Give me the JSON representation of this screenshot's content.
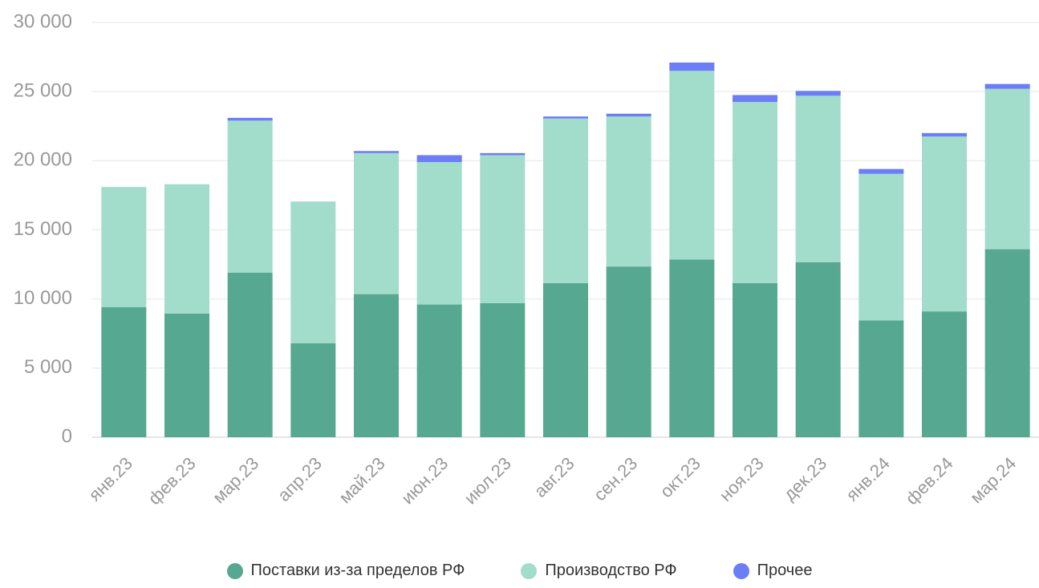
{
  "chart_data": {
    "type": "stacked-bar",
    "categories": [
      "янв.23",
      "фев.23",
      "мар.23",
      "апр.23",
      "май.23",
      "июн.23",
      "июл.23",
      "авг.23",
      "сен.23",
      "окт.23",
      "ноя.23",
      "дек.23",
      "янв.24",
      "фев.24",
      "мар.24"
    ],
    "series": [
      {
        "name": "Поставки из-за пределов РФ",
        "color": "#57a890",
        "values": [
          9400,
          8950,
          11900,
          6800,
          10350,
          9600,
          9700,
          11150,
          12350,
          12850,
          11150,
          12650,
          8450,
          9100,
          13600
        ]
      },
      {
        "name": "Производство РФ",
        "color": "#a2dccb",
        "values": [
          8700,
          9350,
          11000,
          10250,
          10200,
          10300,
          10700,
          11900,
          10850,
          13650,
          13100,
          12050,
          10600,
          12650,
          11600
        ]
      },
      {
        "name": "Прочее",
        "color": "#6b7ef5",
        "values": [
          0,
          0,
          200,
          0,
          150,
          500,
          150,
          150,
          200,
          600,
          500,
          350,
          350,
          250,
          350
        ]
      }
    ],
    "ylim": [
      0,
      30000
    ],
    "yticks": [
      0,
      {
        "value": 5000,
        "label": "5 000"
      },
      {
        "value": 10000,
        "label": "10 000"
      },
      {
        "value": 15000,
        "label": "15 000"
      },
      {
        "value": 20000,
        "label": "20 000"
      },
      {
        "value": 25000,
        "label": "25 000"
      },
      {
        "value": 30000,
        "label": "30 000"
      }
    ],
    "grid": true,
    "legend": "bottom"
  }
}
